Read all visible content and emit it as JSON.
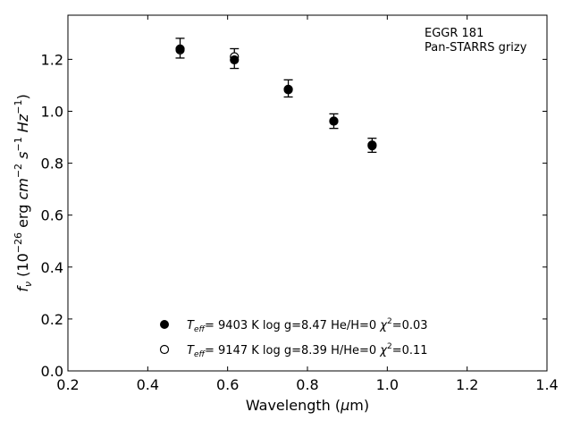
{
  "chart_data": {
    "type": "scatter",
    "title": "",
    "xlabel": "Wavelength (μm)",
    "ylabel": "f_ν (10^-26 erg cm^-2 s^-1 Hz^-1)",
    "xlim": [
      0.2,
      1.4
    ],
    "ylim": [
      0.0,
      1.37
    ],
    "xticks": [
      0.2,
      0.4,
      0.6,
      0.8,
      1.0,
      1.2,
      1.4
    ],
    "yticks": [
      0.0,
      0.2,
      0.4,
      0.6,
      0.8,
      1.0,
      1.2
    ],
    "xtick_labels": [
      "0.2",
      "0.4",
      "0.6",
      "0.8",
      "1.0",
      "1.2",
      "1.4"
    ],
    "ytick_labels": [
      "0.0",
      "0.2",
      "0.4",
      "0.6",
      "0.8",
      "1.0",
      "1.2"
    ],
    "grid": false,
    "legend_placement": "bottom-center",
    "annotations": [
      "EGGR 181",
      "Pan-STARRS grizy"
    ],
    "observed": {
      "x": [
        0.481,
        0.617,
        0.752,
        0.866,
        0.962
      ],
      "y": [
        1.243,
        1.203,
        1.088,
        0.962,
        0.869
      ],
      "err": [
        0.038,
        0.038,
        0.033,
        0.028,
        0.027
      ]
    },
    "series": [
      {
        "name": "T_eff= 9403 K  log g=8.47  He/H=0  χ²=0.03",
        "marker": "filled",
        "x": [
          0.481,
          0.617,
          0.752,
          0.866,
          0.962
        ],
        "y": [
          1.24,
          1.198,
          1.083,
          0.962,
          0.867
        ]
      },
      {
        "name": "T_eff= 9147 K  log g=8.39  H/He=0  χ²=0.11",
        "marker": "open",
        "x": [
          0.481,
          0.617,
          0.752,
          0.866,
          0.962
        ],
        "y": [
          1.236,
          1.21,
          1.085,
          0.962,
          0.87
        ]
      }
    ],
    "colors": {
      "marker": "#000000",
      "axes": "#000000",
      "background": "#ffffff"
    }
  }
}
